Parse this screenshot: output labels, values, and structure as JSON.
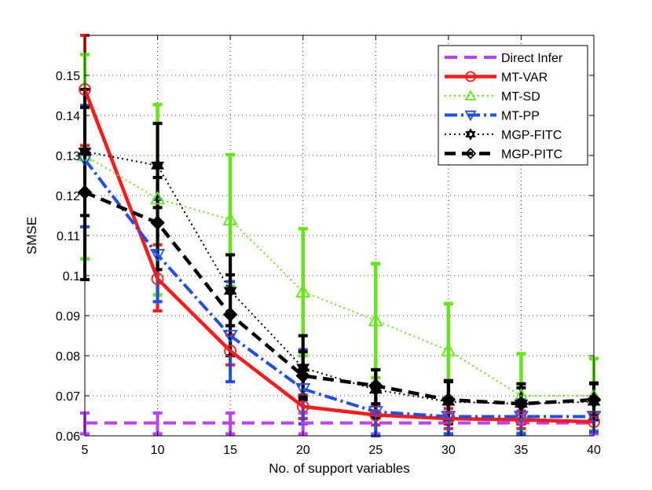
{
  "chart_data": {
    "type": "line",
    "title": "",
    "xlabel": "No. of support variables",
    "ylabel": "SMSE",
    "xlim": [
      5,
      40
    ],
    "ylim": [
      0.06,
      0.16
    ],
    "grid": true,
    "legend_position": "top-right",
    "x": [
      5,
      10,
      15,
      20,
      25,
      30,
      35,
      40
    ],
    "xticks": [
      "5",
      "10",
      "15",
      "20",
      "25",
      "30",
      "35",
      "40"
    ],
    "yticks": [
      "0.06",
      "0.07",
      "0.08",
      "0.09",
      "0.1",
      "0.11",
      "0.12",
      "0.13",
      "0.14",
      "0.15"
    ],
    "series": [
      {
        "name": "Direct Infer",
        "color": "#bf3fff",
        "style": "dashed",
        "marker": "none",
        "values": [
          0.0632,
          0.0632,
          0.0632,
          0.0632,
          0.0632,
          0.0632,
          0.0632,
          0.0632
        ],
        "err_low": [
          0.0605,
          0.0605,
          0.0605,
          0.0605,
          0.0605,
          0.0605,
          0.0605,
          0.0605
        ],
        "err_high": [
          0.0657,
          0.0657,
          0.0657,
          0.0657,
          0.0657,
          0.0657,
          0.0657,
          0.0657
        ]
      },
      {
        "name": "MT-VAR",
        "color": "#ff1a1a",
        "style": "solid",
        "marker": "circle",
        "values": [
          0.1465,
          0.0992,
          0.0812,
          0.0673,
          0.0652,
          0.0643,
          0.064,
          0.0635
        ],
        "err_low": [
          0.1325,
          0.0912,
          0.0777,
          0.0643,
          0.0627,
          0.0618,
          0.0618,
          0.0613
        ],
        "err_high": [
          0.16,
          0.1077,
          0.0852,
          0.0702,
          0.0677,
          0.0668,
          0.0662,
          0.0657
        ]
      },
      {
        "name": "MT-SD",
        "color": "#66e619",
        "style": "dotted",
        "marker": "triangle-up",
        "values": [
          0.13,
          0.1192,
          0.114,
          0.096,
          0.0888,
          0.0813,
          0.07,
          0.07
        ],
        "err_low": [
          0.1042,
          0.0952,
          0.0973,
          0.08,
          0.0745,
          0.0697,
          0.0607,
          0.0612
        ],
        "err_high": [
          0.1552,
          0.1427,
          0.1302,
          0.1117,
          0.103,
          0.093,
          0.0805,
          0.0793
        ]
      },
      {
        "name": "MT-PP",
        "color": "#1f4fe8",
        "style": "dashdot",
        "marker": "triangle-down",
        "values": [
          0.129,
          0.1052,
          0.085,
          0.0717,
          0.066,
          0.0648,
          0.0648,
          0.0648
        ],
        "err_low": [
          0.1122,
          0.0935,
          0.0735,
          0.063,
          0.06,
          0.0605,
          0.0605,
          0.061
        ],
        "err_high": [
          0.1425,
          0.119,
          0.0985,
          0.0815,
          0.073,
          0.069,
          0.069,
          0.069
        ]
      },
      {
        "name": "MGP-FITC",
        "color": "#000000",
        "style": "dotted",
        "marker": "hexagram",
        "values": [
          0.131,
          0.1275,
          0.0962,
          0.077,
          0.0715,
          0.0685,
          0.068,
          0.0685
        ],
        "err_low": [
          0.115,
          0.117,
          0.0875,
          0.0697,
          0.0645,
          0.063,
          0.063,
          0.064
        ],
        "err_high": [
          0.1465,
          0.138,
          0.1052,
          0.085,
          0.0765,
          0.0738,
          0.073,
          0.0732
        ]
      },
      {
        "name": "MGP-PITC",
        "color": "#000000",
        "style": "dashed",
        "marker": "diamond",
        "values": [
          0.1208,
          0.1132,
          0.0903,
          0.075,
          0.0725,
          0.069,
          0.068,
          0.069
        ],
        "err_low": [
          0.099,
          0.1015,
          0.08,
          0.069,
          0.068,
          0.064,
          0.064,
          0.065
        ],
        "err_high": [
          0.142,
          0.1245,
          0.1002,
          0.081,
          0.0765,
          0.0735,
          0.072,
          0.073
        ]
      }
    ]
  }
}
